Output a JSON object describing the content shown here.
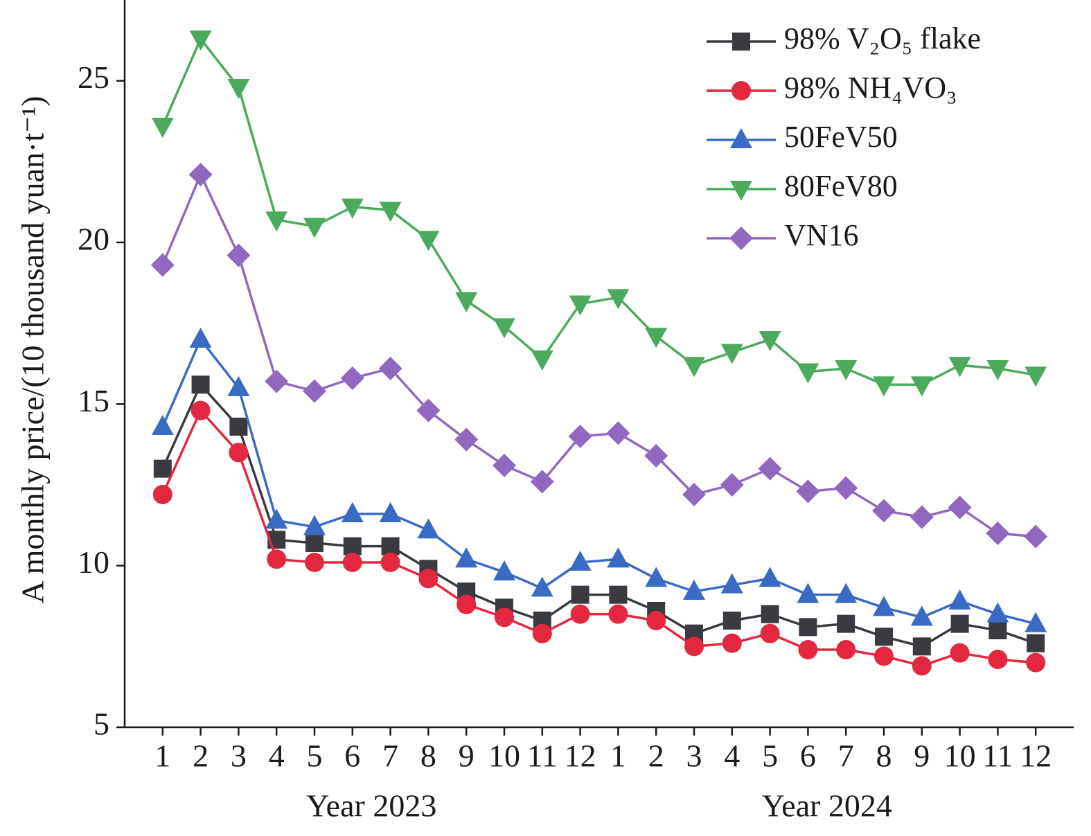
{
  "chart_data": {
    "type": "line",
    "y_label": "A monthly price/(10 thousand yuan·t⁻¹)",
    "categories": [
      "1",
      "2",
      "3",
      "4",
      "5",
      "6",
      "7",
      "8",
      "9",
      "10",
      "11",
      "12",
      "1",
      "2",
      "3",
      "4",
      "5",
      "6",
      "7",
      "8",
      "9",
      "10",
      "11",
      "12"
    ],
    "groups": [
      "Year 2023",
      "Year 2024"
    ],
    "ylim": [
      5,
      27.5
    ],
    "yticks": [
      5,
      10,
      15,
      20,
      25
    ],
    "series": [
      {
        "name": "98% V₂O₅ flake",
        "color": "#3a3b40",
        "marker": "square",
        "values": [
          13.0,
          15.6,
          14.3,
          10.8,
          10.7,
          10.6,
          10.6,
          9.9,
          9.2,
          8.7,
          8.3,
          9.1,
          9.1,
          8.6,
          7.9,
          8.3,
          8.5,
          8.1,
          8.2,
          7.8,
          7.5,
          8.2,
          8.0,
          7.6
        ]
      },
      {
        "name": "98% NH₄VO₃",
        "color": "#e3273f",
        "marker": "circle",
        "values": [
          12.2,
          14.8,
          13.5,
          10.2,
          10.1,
          10.1,
          10.1,
          9.6,
          8.8,
          8.4,
          7.9,
          8.5,
          8.5,
          8.3,
          7.5,
          7.6,
          7.9,
          7.4,
          7.4,
          7.2,
          6.9,
          7.3,
          7.1,
          7.0
        ]
      },
      {
        "name": "50FeV50",
        "color": "#3a6bc4",
        "marker": "triangle-up",
        "values": [
          14.3,
          17.0,
          15.5,
          11.4,
          11.2,
          11.6,
          11.6,
          11.1,
          10.2,
          9.8,
          9.3,
          10.1,
          10.2,
          9.6,
          9.2,
          9.4,
          9.6,
          9.1,
          9.1,
          8.7,
          8.4,
          8.9,
          8.5,
          8.2
        ]
      },
      {
        "name": "80FeV80",
        "color": "#4caa5c",
        "marker": "triangle-down",
        "values": [
          23.6,
          26.3,
          24.8,
          20.7,
          20.5,
          21.1,
          21.0,
          20.1,
          18.2,
          17.4,
          16.4,
          18.1,
          18.3,
          17.1,
          16.2,
          16.6,
          17.0,
          16.0,
          16.1,
          15.6,
          15.6,
          16.2,
          16.1,
          15.9
        ]
      },
      {
        "name": "VN16",
        "color": "#9168c0",
        "marker": "diamond",
        "values": [
          19.3,
          22.1,
          19.6,
          15.7,
          15.4,
          15.8,
          16.1,
          14.8,
          13.9,
          13.1,
          12.6,
          14.0,
          14.1,
          13.4,
          12.2,
          12.5,
          13.0,
          12.3,
          12.4,
          11.7,
          11.5,
          11.8,
          11.0,
          10.9
        ]
      }
    ]
  }
}
